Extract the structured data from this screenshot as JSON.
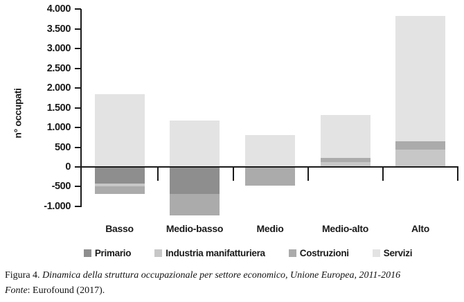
{
  "figure": {
    "caption_prefix": "Figura 4.",
    "caption_title": "Dinamica della struttura occupazionale per settore economico, Unione Europea, 2011-2016",
    "source_label": "Fonte",
    "source_text": ": Eurofound (2017)."
  },
  "chart_data": {
    "type": "bar",
    "stacked": true,
    "title": "",
    "xlabel": "",
    "ylabel": "n° occupati",
    "ylim": [
      -1000,
      4000
    ],
    "ytick_step": 500,
    "grid": false,
    "legend_position": "bottom",
    "axis_color": "#1a1a1a",
    "yticks": [
      {
        "value": 4000,
        "label": "4.000"
      },
      {
        "value": 3500,
        "label": "3.500"
      },
      {
        "value": 3000,
        "label": "3.000"
      },
      {
        "value": 2500,
        "label": "2.500"
      },
      {
        "value": 2000,
        "label": "2.000"
      },
      {
        "value": 1500,
        "label": "1.500"
      },
      {
        "value": 1000,
        "label": "1.000"
      },
      {
        "value": 500,
        "label": "500"
      },
      {
        "value": 0,
        "label": "0"
      },
      {
        "value": -500,
        "label": "-500"
      },
      {
        "value": -1000,
        "label": "-1.000"
      }
    ],
    "categories": [
      "Basso",
      "Medio-basso",
      "Medio",
      "Medio-alto",
      "Alto"
    ],
    "series": [
      {
        "name": "Primario",
        "values": [
          -430,
          -690,
          0,
          0,
          0
        ]
      },
      {
        "name": "Industria manifatturiera",
        "values": [
          -70,
          0,
          0,
          120,
          440
        ]
      },
      {
        "name": "Costruzioni",
        "values": [
          -190,
          -540,
          -480,
          100,
          210
        ]
      },
      {
        "name": "Servizi",
        "values": [
          1850,
          1180,
          800,
          1100,
          3190
        ]
      }
    ],
    "stack_totals": {
      "positive": [
        1850,
        1180,
        800,
        1320,
        3840
      ],
      "negative": [
        -690,
        -1230,
        -480,
        0,
        0
      ]
    },
    "sector_colors": {
      "Primario": "#8e8e8e",
      "Industria manifatturiera": "#c7c7c7",
      "Costruzioni": "#ababab",
      "Servizi": "#e3e3e3"
    },
    "legend": [
      "Primario",
      "Industria manifatturiera",
      "Costruzioni",
      "Servizi"
    ]
  }
}
